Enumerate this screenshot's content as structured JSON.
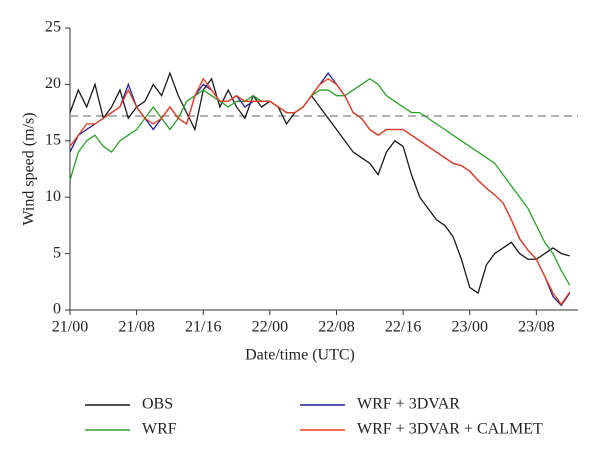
{
  "chart_data": {
    "type": "line",
    "x_label": "Date/time (UTC)",
    "y_label": "Wind speed (m/s)",
    "x": [
      0,
      1,
      2,
      3,
      4,
      5,
      6,
      7,
      8,
      9,
      10,
      11,
      12,
      13,
      14,
      15,
      16,
      17,
      18,
      19,
      20,
      21,
      22,
      23,
      24,
      25,
      26,
      27,
      28,
      29,
      30,
      31,
      32,
      33,
      34,
      35,
      36,
      37,
      38,
      39,
      40,
      41,
      42,
      43,
      44,
      45,
      46,
      47,
      48,
      49,
      50,
      51,
      52,
      53,
      54,
      55,
      56,
      57,
      58,
      59,
      60
    ],
    "xlim": [
      0,
      61
    ],
    "xticks": [
      {
        "value": 0,
        "label": "21/00"
      },
      {
        "value": 8,
        "label": "21/08"
      },
      {
        "value": 16,
        "label": "21/16"
      },
      {
        "value": 24,
        "label": "22/00"
      },
      {
        "value": 32,
        "label": "22/08"
      },
      {
        "value": 40,
        "label": "22/16"
      },
      {
        "value": 48,
        "label": "23/00"
      },
      {
        "value": 56,
        "label": "23/08"
      }
    ],
    "ylim": [
      0,
      25
    ],
    "yticks": [
      0,
      5,
      10,
      15,
      20,
      25
    ],
    "reference_line": {
      "value": 17.2,
      "color": "#999999"
    },
    "series": [
      {
        "name": "OBS",
        "color": "#1a1a1a",
        "values": [
          17.5,
          19.5,
          18,
          20,
          17,
          18,
          19.5,
          17,
          18,
          18.5,
          20,
          19,
          21,
          19,
          17.5,
          16,
          19.5,
          20.5,
          18,
          19.5,
          18,
          17,
          19,
          18,
          18.5,
          18,
          16.5,
          17.5,
          18,
          19,
          18,
          17,
          16,
          15,
          14,
          13.5,
          13,
          12,
          14,
          15,
          14.5,
          12,
          10,
          9,
          8,
          7.5,
          6.5,
          4.5,
          2,
          1.5,
          4,
          5,
          5.5,
          6,
          5,
          4.5,
          4.5,
          5,
          5.5,
          5,
          4.8
        ]
      },
      {
        "name": "WRF",
        "color": "#2ca02c",
        "values": [
          11.5,
          14,
          15,
          15.5,
          14.5,
          14,
          15,
          15.5,
          16,
          17,
          18,
          17,
          16,
          17,
          18.5,
          19,
          19.5,
          19,
          18.5,
          18,
          18.5,
          18.5,
          19,
          18.5,
          18.5,
          18,
          17.5,
          17.5,
          18,
          19,
          19.5,
          19.5,
          19,
          19,
          19.5,
          20,
          20.5,
          20,
          19,
          18.5,
          18,
          17.5,
          17.5,
          17,
          16.5,
          16,
          15.5,
          15,
          14.5,
          14,
          13.5,
          13,
          12,
          11,
          10,
          9,
          7.5,
          6,
          5,
          3.5,
          2.2
        ]
      },
      {
        "name": "WRF + 3DVAR",
        "color": "#1f1f9e",
        "values": [
          14,
          15.5,
          16,
          16.5,
          17,
          17.5,
          18,
          20,
          18,
          17,
          16,
          17,
          18,
          17,
          16.5,
          19,
          20,
          19.5,
          18.5,
          18.5,
          19,
          18,
          18.5,
          18.5,
          18.5,
          18,
          17.5,
          17.5,
          18,
          19,
          20,
          21,
          20,
          19,
          17.5,
          17,
          16,
          15.5,
          16,
          16,
          16,
          15.5,
          15,
          14.5,
          14,
          13.5,
          13,
          12.8,
          12.3,
          11.5,
          10.8,
          10.2,
          9.5,
          8,
          6.3,
          5.3,
          4.5,
          3,
          1.2,
          0.4,
          1.5
        ]
      },
      {
        "name": "WRF + 3DVAR + CALMET",
        "color": "#e8401c",
        "values": [
          14.5,
          15.5,
          16.5,
          16.5,
          17,
          17.5,
          18,
          19.5,
          18,
          17,
          16.5,
          17,
          18,
          17,
          16.5,
          19,
          20.5,
          19.5,
          18.5,
          18.5,
          19,
          18.5,
          18.5,
          18.5,
          18.5,
          18,
          17.5,
          17.5,
          18,
          19,
          20,
          20.5,
          20,
          19,
          17.5,
          17,
          16,
          15.5,
          16,
          16,
          16,
          15.5,
          15,
          14.5,
          14,
          13.5,
          13,
          12.8,
          12.3,
          11.5,
          10.8,
          10.2,
          9.5,
          8,
          6.3,
          5.3,
          4.5,
          3,
          1.5,
          0.5,
          1.6
        ]
      }
    ]
  }
}
